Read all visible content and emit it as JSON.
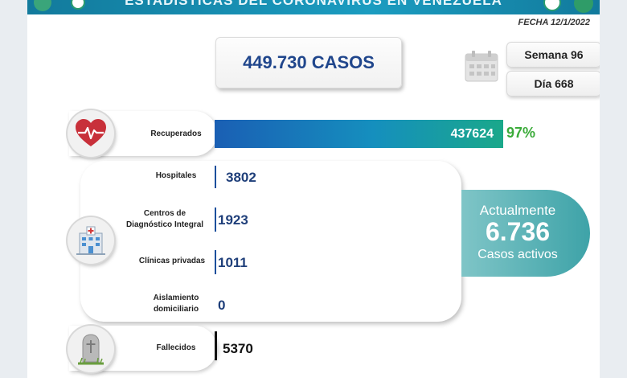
{
  "header": {
    "title": "ESTADÍSTICAS DEL CORONAVIRUS EN VENEZUELA",
    "fecha": "FECHA 12/1/2022"
  },
  "summary": {
    "total_casos": "449.730 CASOS",
    "semana": "Semana 96",
    "dia": "Día 668"
  },
  "recuperados": {
    "label": "Recuperados",
    "value": "437624",
    "percent": "97%"
  },
  "hospitalizacion": {
    "hospitales": {
      "label": "Hospitales",
      "value": "3802"
    },
    "cdi": {
      "label_line1": "Centros de",
      "label_line2": "Diagnóstico Integral",
      "value": "1923"
    },
    "clinicas": {
      "label": "Clínicas privadas",
      "value": "1011"
    },
    "aislamiento": {
      "label_line1": "Aislamiento",
      "label_line2": "domiciliario",
      "value": "0"
    }
  },
  "activos": {
    "line1": "Actualmente",
    "number": "6.736",
    "line3": "Casos activos"
  },
  "fallecidos": {
    "label": "Fallecidos",
    "value": "5370"
  },
  "icons": {
    "recuperados": "heart-pulse-icon",
    "hospital": "hospital-building-icon",
    "fallecidos": "grave-cross-icon",
    "calendar": "calendar-icon"
  },
  "colors": {
    "accent_blue": "#1f3f7a",
    "recovered_green": "#3bab3a",
    "active_teal": "#3ea3a8"
  }
}
